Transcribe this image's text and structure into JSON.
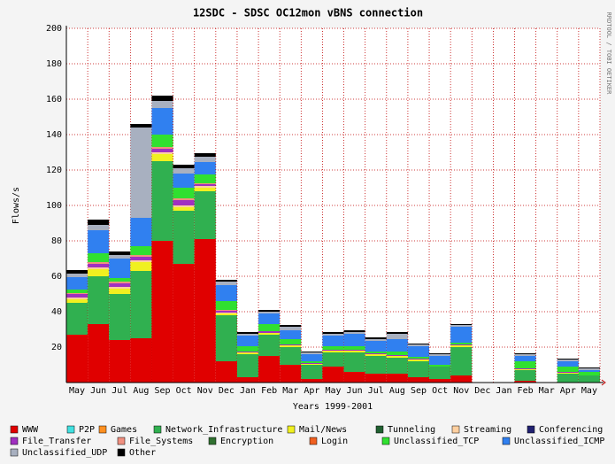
{
  "chart_data": {
    "type": "stacked_bar",
    "title": "12SDC - SDSC OC12mon vBNS connection",
    "y_label": "Flows/s",
    "x_label": "Years 1999-2001",
    "side_note": "RRDTOOL / TOBI OETIKER",
    "categories": [
      "May",
      "Jun",
      "Jul",
      "Aug",
      "Sep",
      "Oct",
      "Nov",
      "Dec",
      "Jan",
      "Feb",
      "Mar",
      "Apr",
      "May",
      "Jun",
      "Jul",
      "Aug",
      "Sep",
      "Oct",
      "Nov",
      "Dec",
      "Jan",
      "Feb",
      "Mar",
      "Apr",
      "May"
    ],
    "ylim": [
      0,
      200
    ],
    "yticks": [
      20,
      40,
      60,
      80,
      100,
      120,
      140,
      160,
      180,
      200
    ],
    "grid": true,
    "series": [
      {
        "name": "WWW",
        "color": "#e00000",
        "values": [
          27,
          33,
          24,
          25,
          80,
          67,
          81,
          12,
          3,
          15,
          10,
          2,
          9,
          6,
          5,
          5,
          3,
          2,
          4,
          0,
          0,
          1,
          0,
          0,
          0
        ]
      },
      {
        "name": "P2P",
        "color": "#40e0e0",
        "values": [
          0,
          0,
          0,
          0,
          0,
          0,
          0,
          0,
          0,
          0,
          0,
          0,
          0,
          0,
          0,
          0,
          0,
          0,
          0,
          0,
          0,
          0,
          0,
          0,
          0
        ]
      },
      {
        "name": "Games",
        "color": "#ff9020",
        "values": [
          0,
          0,
          0,
          0,
          0,
          0,
          0,
          0,
          0,
          0,
          0,
          0,
          0,
          0,
          0,
          0,
          0,
          0,
          0,
          0,
          0,
          0,
          0,
          0,
          0
        ]
      },
      {
        "name": "Network_Infrastructure",
        "color": "#30b050",
        "values": [
          18,
          27,
          26,
          38,
          45,
          30,
          27,
          26,
          13,
          12,
          10,
          8,
          8,
          11,
          10,
          9,
          9,
          7,
          16,
          0,
          0,
          6,
          0,
          5,
          4
        ]
      },
      {
        "name": "Mail/News",
        "color": "#f0f020",
        "values": [
          2,
          4,
          3,
          5,
          4,
          2,
          2,
          1,
          1,
          1,
          1,
          0.5,
          1,
          1,
          1,
          1,
          1,
          0,
          1,
          0,
          0,
          0.5,
          0,
          0.5,
          0
        ]
      },
      {
        "name": "Tunneling",
        "color": "#206030",
        "values": [
          0,
          0,
          0,
          0,
          0,
          0,
          0,
          0,
          0,
          0,
          0,
          0,
          0,
          0,
          0,
          0,
          0,
          0,
          0,
          0,
          0,
          0,
          0,
          0,
          0
        ]
      },
      {
        "name": "Streaming",
        "color": "#ffd0a0",
        "values": [
          1,
          1,
          1,
          1,
          1,
          1,
          1,
          0.5,
          0,
          0,
          0,
          0,
          0,
          0,
          0,
          0,
          0,
          0,
          0,
          0,
          0,
          0,
          0,
          0,
          0
        ]
      },
      {
        "name": "Conferencing",
        "color": "#202070",
        "values": [
          0,
          0,
          0,
          0,
          0,
          0,
          0,
          0,
          0,
          0,
          0,
          0,
          0,
          0,
          0,
          0,
          0,
          0,
          0,
          0,
          0,
          0,
          0,
          0,
          0
        ]
      },
      {
        "name": "File_Transfer",
        "color": "#a030c0",
        "values": [
          2,
          2,
          2,
          2,
          2,
          3,
          1,
          1,
          0.5,
          1,
          0.5,
          0.5,
          0.5,
          0.5,
          0.5,
          0.5,
          0.5,
          0,
          0.5,
          0,
          0,
          0.5,
          0,
          0.5,
          0
        ]
      },
      {
        "name": "File_Systems",
        "color": "#f09080",
        "values": [
          0.5,
          1,
          1,
          1,
          1,
          1,
          0.5,
          0.5,
          0,
          0,
          0,
          0,
          0,
          0,
          0,
          0,
          0,
          0,
          0,
          0,
          0,
          0,
          0,
          0,
          0
        ]
      },
      {
        "name": "Encryption",
        "color": "#307030",
        "values": [
          0,
          0,
          0,
          0,
          0,
          0,
          0,
          0,
          0,
          0,
          0,
          0,
          0,
          0,
          0,
          0,
          0,
          0,
          0,
          0,
          0,
          0,
          0,
          0,
          0
        ]
      },
      {
        "name": "Login",
        "color": "#f06020",
        "values": [
          0,
          0,
          0,
          0,
          0,
          0,
          0,
          0,
          0,
          0,
          0,
          0,
          0,
          0,
          0,
          0,
          0,
          0,
          0,
          0,
          0,
          0,
          0,
          0,
          0
        ]
      },
      {
        "name": "Unclassified_TCP",
        "color": "#30e030",
        "values": [
          2,
          5,
          2,
          5,
          7,
          6,
          5,
          5,
          3,
          4,
          3,
          1,
          2,
          2,
          1,
          2,
          1,
          1,
          1,
          0,
          0,
          4,
          0,
          3,
          2
        ]
      },
      {
        "name": "Unclassified_ICMP",
        "color": "#3080f0",
        "values": [
          7,
          13,
          11,
          16,
          15,
          8,
          7,
          9,
          6,
          6,
          5,
          4,
          6,
          7,
          6,
          7,
          6,
          5,
          9,
          0,
          0,
          3,
          0,
          3,
          1
        ]
      },
      {
        "name": "Unclassified_UDP",
        "color": "#a8b0c0",
        "values": [
          2,
          3,
          2,
          51,
          4,
          3,
          3,
          2,
          1,
          1,
          2,
          1,
          1,
          1,
          1,
          3,
          1,
          1,
          1,
          0,
          0,
          1,
          0,
          1,
          1
        ]
      },
      {
        "name": "Other",
        "color": "#000000",
        "values": [
          2,
          3,
          2,
          2,
          3,
          2,
          2,
          1,
          1,
          1,
          1,
          0.5,
          1,
          1,
          1,
          1,
          0.5,
          0.5,
          0.5,
          0,
          0,
          0.5,
          0,
          0.5,
          0.5
        ]
      }
    ]
  }
}
